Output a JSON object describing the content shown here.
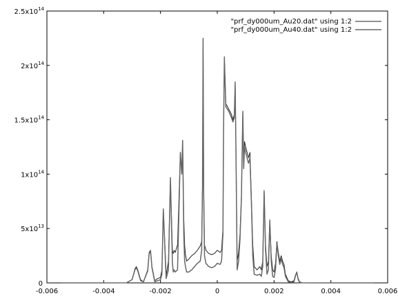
{
  "chart_data": {
    "type": "line",
    "title": "",
    "xlabel": "",
    "ylabel": "",
    "xlim": [
      -0.006,
      0.006
    ],
    "ylim": [
      0,
      250000000000000.0
    ],
    "grid": false,
    "legend_position": "top-right",
    "x_ticks": [
      {
        "value": -0.006,
        "label": "-0.006"
      },
      {
        "value": -0.004,
        "label": "-0.004"
      },
      {
        "value": -0.002,
        "label": "-0.002"
      },
      {
        "value": 0,
        "label": "0"
      },
      {
        "value": 0.002,
        "label": "0.002"
      },
      {
        "value": 0.004,
        "label": "0.004"
      },
      {
        "value": 0.006,
        "label": "0.006"
      }
    ],
    "y_ticks": [
      {
        "value": 0,
        "mantissa": "0",
        "exponent": ""
      },
      {
        "value": 50000000000000.0,
        "mantissa": "5x10",
        "exponent": "13"
      },
      {
        "value": 100000000000000.0,
        "mantissa": "1x10",
        "exponent": "14"
      },
      {
        "value": 150000000000000.0,
        "mantissa": "1.5x10",
        "exponent": "14"
      },
      {
        "value": 200000000000000.0,
        "mantissa": "2x10",
        "exponent": "14"
      },
      {
        "value": 250000000000000.0,
        "mantissa": "2.5x10",
        "exponent": "14"
      }
    ],
    "series": [
      {
        "name": "\"prf_dy000um_Au20.dat\" using 1:2",
        "color": "#222222",
        "x": [
          -0.0055,
          -0.004,
          -0.0032,
          -0.003,
          -0.0029,
          -0.00285,
          -0.0028,
          -0.0027,
          -0.0026,
          -0.00245,
          -0.0024,
          -0.00235,
          -0.0023,
          -0.0022,
          -0.0021,
          -0.002,
          -0.00195,
          -0.0019,
          -0.00182,
          -0.0018,
          -0.00178,
          -0.00172,
          -0.00165,
          -0.00158,
          -0.00155,
          -0.00152,
          -0.00148,
          -0.0014,
          -0.0013,
          -0.00125,
          -0.00122,
          -0.00118,
          -0.00115,
          -0.00112,
          -0.00108,
          -0.001,
          -0.0009,
          -0.0008,
          -0.0007,
          -0.0006,
          -0.00055,
          -0.00052,
          -0.0005,
          -0.00048,
          -0.00045,
          -0.0004,
          -0.0003,
          -0.0002,
          -0.0001,
          0.0,
          0.0001,
          0.00015,
          0.0002,
          0.00022,
          0.00025,
          0.0003,
          0.0004,
          0.0005,
          0.00055,
          0.0006,
          0.00063,
          0.00066,
          0.0007,
          0.00075,
          0.0008,
          0.00085,
          0.0009,
          0.00093,
          0.00096,
          0.001,
          0.0011,
          0.00115,
          0.0012,
          0.00125,
          0.0013,
          0.0014,
          0.0015,
          0.00155,
          0.0016,
          0.00165,
          0.0017,
          0.00175,
          0.0018,
          0.00185,
          0.0019,
          0.00195,
          0.002,
          0.00205,
          0.0021,
          0.00215,
          0.0022,
          0.00225,
          0.0023,
          0.00235,
          0.0024,
          0.0025,
          0.0026,
          0.0027,
          0.00275,
          0.0028,
          0.00285,
          0.0029,
          0.003,
          0.0035,
          0.0055
        ],
        "y": [
          0,
          0,
          50000000000.0,
          3000000000000.0,
          13000000000000.0,
          15000000000000.0,
          12000000000000.0,
          3000000000000.0,
          1000000000000.0,
          12000000000000.0,
          28000000000000.0,
          30000000000000.0,
          15000000000000.0,
          2000000000000.0,
          4000000000000.0,
          5000000000000.0,
          12000000000000.0,
          68000000000000.0,
          20000000000000.0,
          7000000000000.0,
          10000000000000.0,
          20000000000000.0,
          97000000000000.0,
          30000000000000.0,
          27000000000000.0,
          30000000000000.0,
          28000000000000.0,
          35000000000000.0,
          120000000000000.0,
          102000000000000.0,
          131000000000000.0,
          60000000000000.0,
          35000000000000.0,
          26000000000000.0,
          20000000000000.0,
          22000000000000.0,
          25000000000000.0,
          27000000000000.0,
          30000000000000.0,
          34000000000000.0,
          38000000000000.0,
          90000000000000.0,
          225000000000000.0,
          90000000000000.0,
          35000000000000.0,
          30000000000000.0,
          27000000000000.0,
          26000000000000.0,
          27000000000000.0,
          30000000000000.0,
          28000000000000.0,
          30000000000000.0,
          50000000000000.0,
          140000000000000.0,
          208000000000000.0,
          165000000000000.0,
          160000000000000.0,
          155000000000000.0,
          150000000000000.0,
          155000000000000.0,
          185000000000000.0,
          120000000000000.0,
          20000000000000.0,
          28000000000000.0,
          45000000000000.0,
          80000000000000.0,
          158000000000000.0,
          110000000000000.0,
          130000000000000.0,
          125000000000000.0,
          115000000000000.0,
          120000000000000.0,
          80000000000000.0,
          35000000000000.0,
          15000000000000.0,
          12000000000000.0,
          15000000000000.0,
          12000000000000.0,
          20000000000000.0,
          85000000000000.0,
          35000000000000.0,
          15000000000000.0,
          20000000000000.0,
          58000000000000.0,
          25000000000000.0,
          12000000000000.0,
          10000000000000.0,
          18000000000000.0,
          38000000000000.0,
          28000000000000.0,
          20000000000000.0,
          25000000000000.0,
          20000000000000.0,
          17000000000000.0,
          8000000000000.0,
          2000000000000.0,
          1000000000000.0,
          2000000000000.0,
          7000000000000.0,
          10000000000000.0,
          4000000000000.0,
          1000000000000.0,
          100000000000.0,
          0,
          0
        ]
      },
      {
        "name": "\"prf_dy000um_Au40.dat\" using 1:2",
        "color": "#666666",
        "x": [
          -0.0055,
          -0.004,
          -0.0032,
          -0.003,
          -0.0029,
          -0.00285,
          -0.0028,
          -0.0027,
          -0.0026,
          -0.00245,
          -0.0024,
          -0.00235,
          -0.0023,
          -0.0022,
          -0.0021,
          -0.002,
          -0.00195,
          -0.0019,
          -0.00182,
          -0.0018,
          -0.00178,
          -0.00172,
          -0.00165,
          -0.00158,
          -0.00155,
          -0.00152,
          -0.00148,
          -0.0014,
          -0.0013,
          -0.00125,
          -0.00122,
          -0.00118,
          -0.00115,
          -0.00112,
          -0.00108,
          -0.001,
          -0.0009,
          -0.0008,
          -0.0007,
          -0.0006,
          -0.00055,
          -0.00052,
          -0.0005,
          -0.00048,
          -0.00045,
          -0.0004,
          -0.0003,
          -0.0002,
          -0.0001,
          0.0,
          0.0001,
          0.00015,
          0.0002,
          0.00022,
          0.00025,
          0.0003,
          0.0004,
          0.0005,
          0.00055,
          0.0006,
          0.00063,
          0.00066,
          0.0007,
          0.00075,
          0.0008,
          0.00085,
          0.0009,
          0.00093,
          0.00096,
          0.001,
          0.0011,
          0.00115,
          0.0012,
          0.00125,
          0.0013,
          0.0014,
          0.0015,
          0.00155,
          0.0016,
          0.00165,
          0.0017,
          0.00175,
          0.0018,
          0.00185,
          0.0019,
          0.00195,
          0.002,
          0.00205,
          0.0021,
          0.00215,
          0.0022,
          0.00225,
          0.0023,
          0.00235,
          0.0024,
          0.0025,
          0.0026,
          0.0027,
          0.00275,
          0.0028,
          0.00285,
          0.0029,
          0.003,
          0.0035,
          0.0055
        ],
        "y": [
          0,
          0,
          50000000000.0,
          3000000000000.0,
          12000000000000.0,
          14000000000000.0,
          11000000000000.0,
          2000000000000.0,
          1000000000000.0,
          11000000000000.0,
          27000000000000.0,
          29000000000000.0,
          14000000000000.0,
          1000000000000.0,
          2000000000000.0,
          3000000000000.0,
          8000000000000.0,
          68000000000000.0,
          15000000000000.0,
          4000000000000.0,
          6000000000000.0,
          12000000000000.0,
          96000000000000.0,
          18000000000000.0,
          10000000000000.0,
          12000000000000.0,
          10000000000000.0,
          12000000000000.0,
          120000000000000.0,
          100000000000000.0,
          131000000000000.0,
          45000000000000.0,
          20000000000000.0,
          15000000000000.0,
          10000000000000.0,
          10000000000000.0,
          12000000000000.0,
          15000000000000.0,
          18000000000000.0,
          20000000000000.0,
          30000000000000.0,
          88000000000000.0,
          224000000000000.0,
          85000000000000.0,
          25000000000000.0,
          18000000000000.0,
          15000000000000.0,
          14000000000000.0,
          15000000000000.0,
          18000000000000.0,
          17000000000000.0,
          20000000000000.0,
          45000000000000.0,
          138000000000000.0,
          207000000000000.0,
          162000000000000.0,
          158000000000000.0,
          152000000000000.0,
          148000000000000.0,
          152000000000000.0,
          183000000000000.0,
          115000000000000.0,
          12000000000000.0,
          20000000000000.0,
          40000000000000.0,
          78000000000000.0,
          157000000000000.0,
          105000000000000.0,
          125000000000000.0,
          120000000000000.0,
          110000000000000.0,
          115000000000000.0,
          75000000000000.0,
          25000000000000.0,
          8000000000000.0,
          7000000000000.0,
          8000000000000.0,
          6000000000000.0,
          15000000000000.0,
          84000000000000.0,
          30000000000000.0,
          8000000000000.0,
          12000000000000.0,
          57000000000000.0,
          20000000000000.0,
          6000000000000.0,
          5000000000000.0,
          12000000000000.0,
          36000000000000.0,
          25000000000000.0,
          17000000000000.0,
          22000000000000.0,
          17000000000000.0,
          14000000000000.0,
          6000000000000.0,
          1000000000000.0,
          500000000000.0,
          1000000000000.0,
          6000000000000.0,
          10000000000000.0,
          3000000000000.0,
          500000000000.0,
          50000000000.0,
          0,
          0
        ]
      }
    ]
  }
}
